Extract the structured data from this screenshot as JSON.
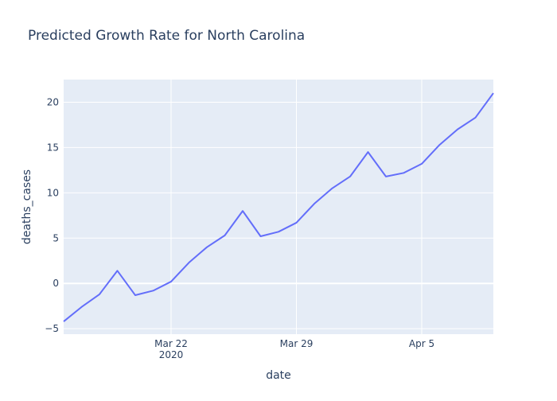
{
  "chart_data": {
    "type": "line",
    "title": "Predicted Growth Rate for North Carolina",
    "xlabel": "date",
    "ylabel": "deaths_cases",
    "x": [
      "2020-03-16",
      "2020-03-17",
      "2020-03-18",
      "2020-03-19",
      "2020-03-20",
      "2020-03-21",
      "2020-03-22",
      "2020-03-23",
      "2020-03-24",
      "2020-03-25",
      "2020-03-26",
      "2020-03-27",
      "2020-03-28",
      "2020-03-29",
      "2020-03-30",
      "2020-03-31",
      "2020-04-01",
      "2020-04-02",
      "2020-04-03",
      "2020-04-04",
      "2020-04-05",
      "2020-04-06",
      "2020-04-07",
      "2020-04-08",
      "2020-04-09"
    ],
    "series": [
      {
        "values": [
          -4.2,
          -2.6,
          -1.2,
          1.4,
          -1.3,
          -0.8,
          0.2,
          2.3,
          4.0,
          5.3,
          8.0,
          5.2,
          5.7,
          6.7,
          8.8,
          10.5,
          11.8,
          14.5,
          11.8,
          12.2,
          13.2,
          15.3,
          17.0,
          18.3,
          21.0
        ]
      }
    ],
    "xlim": [
      "2020-03-16",
      "2020-04-09"
    ],
    "ylim": [
      -5.6,
      22.5
    ],
    "x_ticks": [
      {
        "date": "2020-03-22",
        "label": "Mar 22",
        "sublabel": "2020"
      },
      {
        "date": "2020-03-29",
        "label": "Mar 29",
        "sublabel": ""
      },
      {
        "date": "2020-04-05",
        "label": "Apr 5",
        "sublabel": ""
      }
    ],
    "y_ticks": [
      {
        "value": -5,
        "label": "−5"
      },
      {
        "value": 0,
        "label": "0"
      },
      {
        "value": 5,
        "label": "5"
      },
      {
        "value": 10,
        "label": "10"
      },
      {
        "value": 15,
        "label": "15"
      },
      {
        "value": 20,
        "label": "20"
      }
    ],
    "grid": true,
    "line_color": "#636efa",
    "plot_bg": "#e5ecf6",
    "grid_color": "#ffffff",
    "title_color": "#2a3f5f",
    "text_color": "#2a3f5f"
  }
}
